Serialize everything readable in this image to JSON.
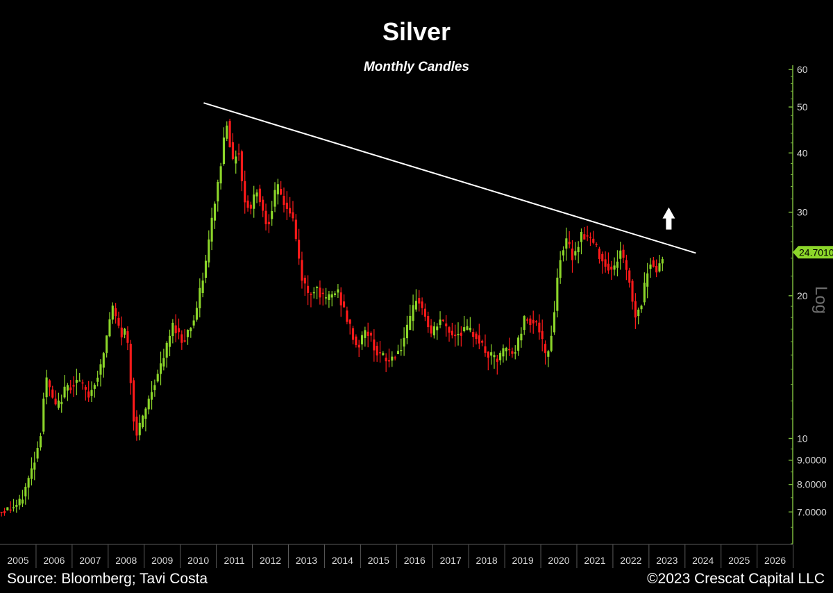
{
  "footer": {
    "source": "Source: Bloomberg; Tavi Costa",
    "copyright": "©2023 Crescat Capital LLC"
  },
  "colors": {
    "background": "#000000",
    "up_candle": "#8cd62a",
    "down_candle": "#ff1a1a",
    "trendline": "#ffffff",
    "axis": "#7ab83c",
    "price_tag": "#8cd62a"
  },
  "chart_data": {
    "type": "candlestick",
    "title": "Silver",
    "subtitle": "Monthly Candles",
    "y_scale": "log",
    "y_scale_label": "Log",
    "ylim": [
      6,
      60
    ],
    "xlim": [
      2005.0,
      2026.95
    ],
    "y_ticks": [
      {
        "value": 60,
        "label": "60"
      },
      {
        "value": 50,
        "label": "50"
      },
      {
        "value": 40,
        "label": "40"
      },
      {
        "value": 30,
        "label": "30"
      },
      {
        "value": 20,
        "label": "20"
      },
      {
        "value": 10,
        "label": "10"
      },
      {
        "value": 9,
        "label": "9.0000"
      },
      {
        "value": 8,
        "label": "8.0000"
      },
      {
        "value": 7,
        "label": "7.0000"
      }
    ],
    "x_ticks": [
      "2005",
      "2006",
      "2007",
      "2008",
      "2009",
      "2010",
      "2011",
      "2012",
      "2013",
      "2014",
      "2015",
      "2016",
      "2017",
      "2018",
      "2019",
      "2020",
      "2021",
      "2022",
      "2023",
      "2024",
      "2025",
      "2026"
    ],
    "last_price": {
      "value": 24.7,
      "label": "24.7010"
    },
    "grid": false,
    "trendline": {
      "from": {
        "x": 2010.65,
        "y": 51
      },
      "to": {
        "x": 2024.3,
        "y": 24.6
      }
    },
    "annotations": [
      {
        "type": "arrow-up",
        "x": 2023.55,
        "y": 29.5
      }
    ],
    "path_points": [
      [
        2005.0,
        7.0
      ],
      [
        2005.3,
        7.1
      ],
      [
        2005.6,
        7.3
      ],
      [
        2005.9,
        8.5
      ],
      [
        2006.15,
        10.0
      ],
      [
        2006.3,
        13.5
      ],
      [
        2006.6,
        11.5
      ],
      [
        2006.85,
        12.7
      ],
      [
        2007.2,
        13.3
      ],
      [
        2007.5,
        12.3
      ],
      [
        2007.85,
        14.2
      ],
      [
        2008.15,
        19.0
      ],
      [
        2008.4,
        16.5
      ],
      [
        2008.55,
        17.0
      ],
      [
        2008.8,
        10.0
      ],
      [
        2009.0,
        11.0
      ],
      [
        2009.3,
        13.0
      ],
      [
        2009.55,
        14.5
      ],
      [
        2009.85,
        17.5
      ],
      [
        2010.1,
        16.0
      ],
      [
        2010.45,
        18.0
      ],
      [
        2010.75,
        23.5
      ],
      [
        2010.95,
        30.0
      ],
      [
        2011.15,
        37.0
      ],
      [
        2011.32,
        47.5
      ],
      [
        2011.5,
        38.0
      ],
      [
        2011.65,
        41.5
      ],
      [
        2011.8,
        32.0
      ],
      [
        2012.0,
        30.5
      ],
      [
        2012.15,
        34.0
      ],
      [
        2012.45,
        28.0
      ],
      [
        2012.72,
        34.0
      ],
      [
        2012.95,
        31.0
      ],
      [
        2013.15,
        29.5
      ],
      [
        2013.4,
        22.0
      ],
      [
        2013.6,
        20.0
      ],
      [
        2013.8,
        21.0
      ],
      [
        2014.05,
        19.5
      ],
      [
        2014.4,
        20.5
      ],
      [
        2014.7,
        17.5
      ],
      [
        2014.95,
        15.5
      ],
      [
        2015.2,
        17.0
      ],
      [
        2015.5,
        15.2
      ],
      [
        2015.8,
        14.5
      ],
      [
        2016.15,
        15.5
      ],
      [
        2016.4,
        17.5
      ],
      [
        2016.6,
        20.0
      ],
      [
        2016.85,
        18.0
      ],
      [
        2017.0,
        16.5
      ],
      [
        2017.25,
        17.8
      ],
      [
        2017.6,
        16.5
      ],
      [
        2017.95,
        17.0
      ],
      [
        2018.25,
        16.5
      ],
      [
        2018.55,
        15.0
      ],
      [
        2018.85,
        14.6
      ],
      [
        2019.05,
        15.5
      ],
      [
        2019.3,
        15.0
      ],
      [
        2019.6,
        18.0
      ],
      [
        2019.95,
        17.5
      ],
      [
        2020.2,
        14.5
      ],
      [
        2020.4,
        18.0
      ],
      [
        2020.55,
        24.0
      ],
      [
        2020.75,
        26.0
      ],
      [
        2020.95,
        24.0
      ],
      [
        2021.15,
        27.0
      ],
      [
        2021.4,
        26.5
      ],
      [
        2021.6,
        25.0
      ],
      [
        2021.8,
        23.5
      ],
      [
        2022.05,
        22.5
      ],
      [
        2022.25,
        25.0
      ],
      [
        2022.5,
        21.5
      ],
      [
        2022.65,
        18.0
      ],
      [
        2022.85,
        19.5
      ],
      [
        2023.05,
        24.0
      ],
      [
        2023.25,
        22.5
      ],
      [
        2023.45,
        24.7
      ]
    ]
  }
}
